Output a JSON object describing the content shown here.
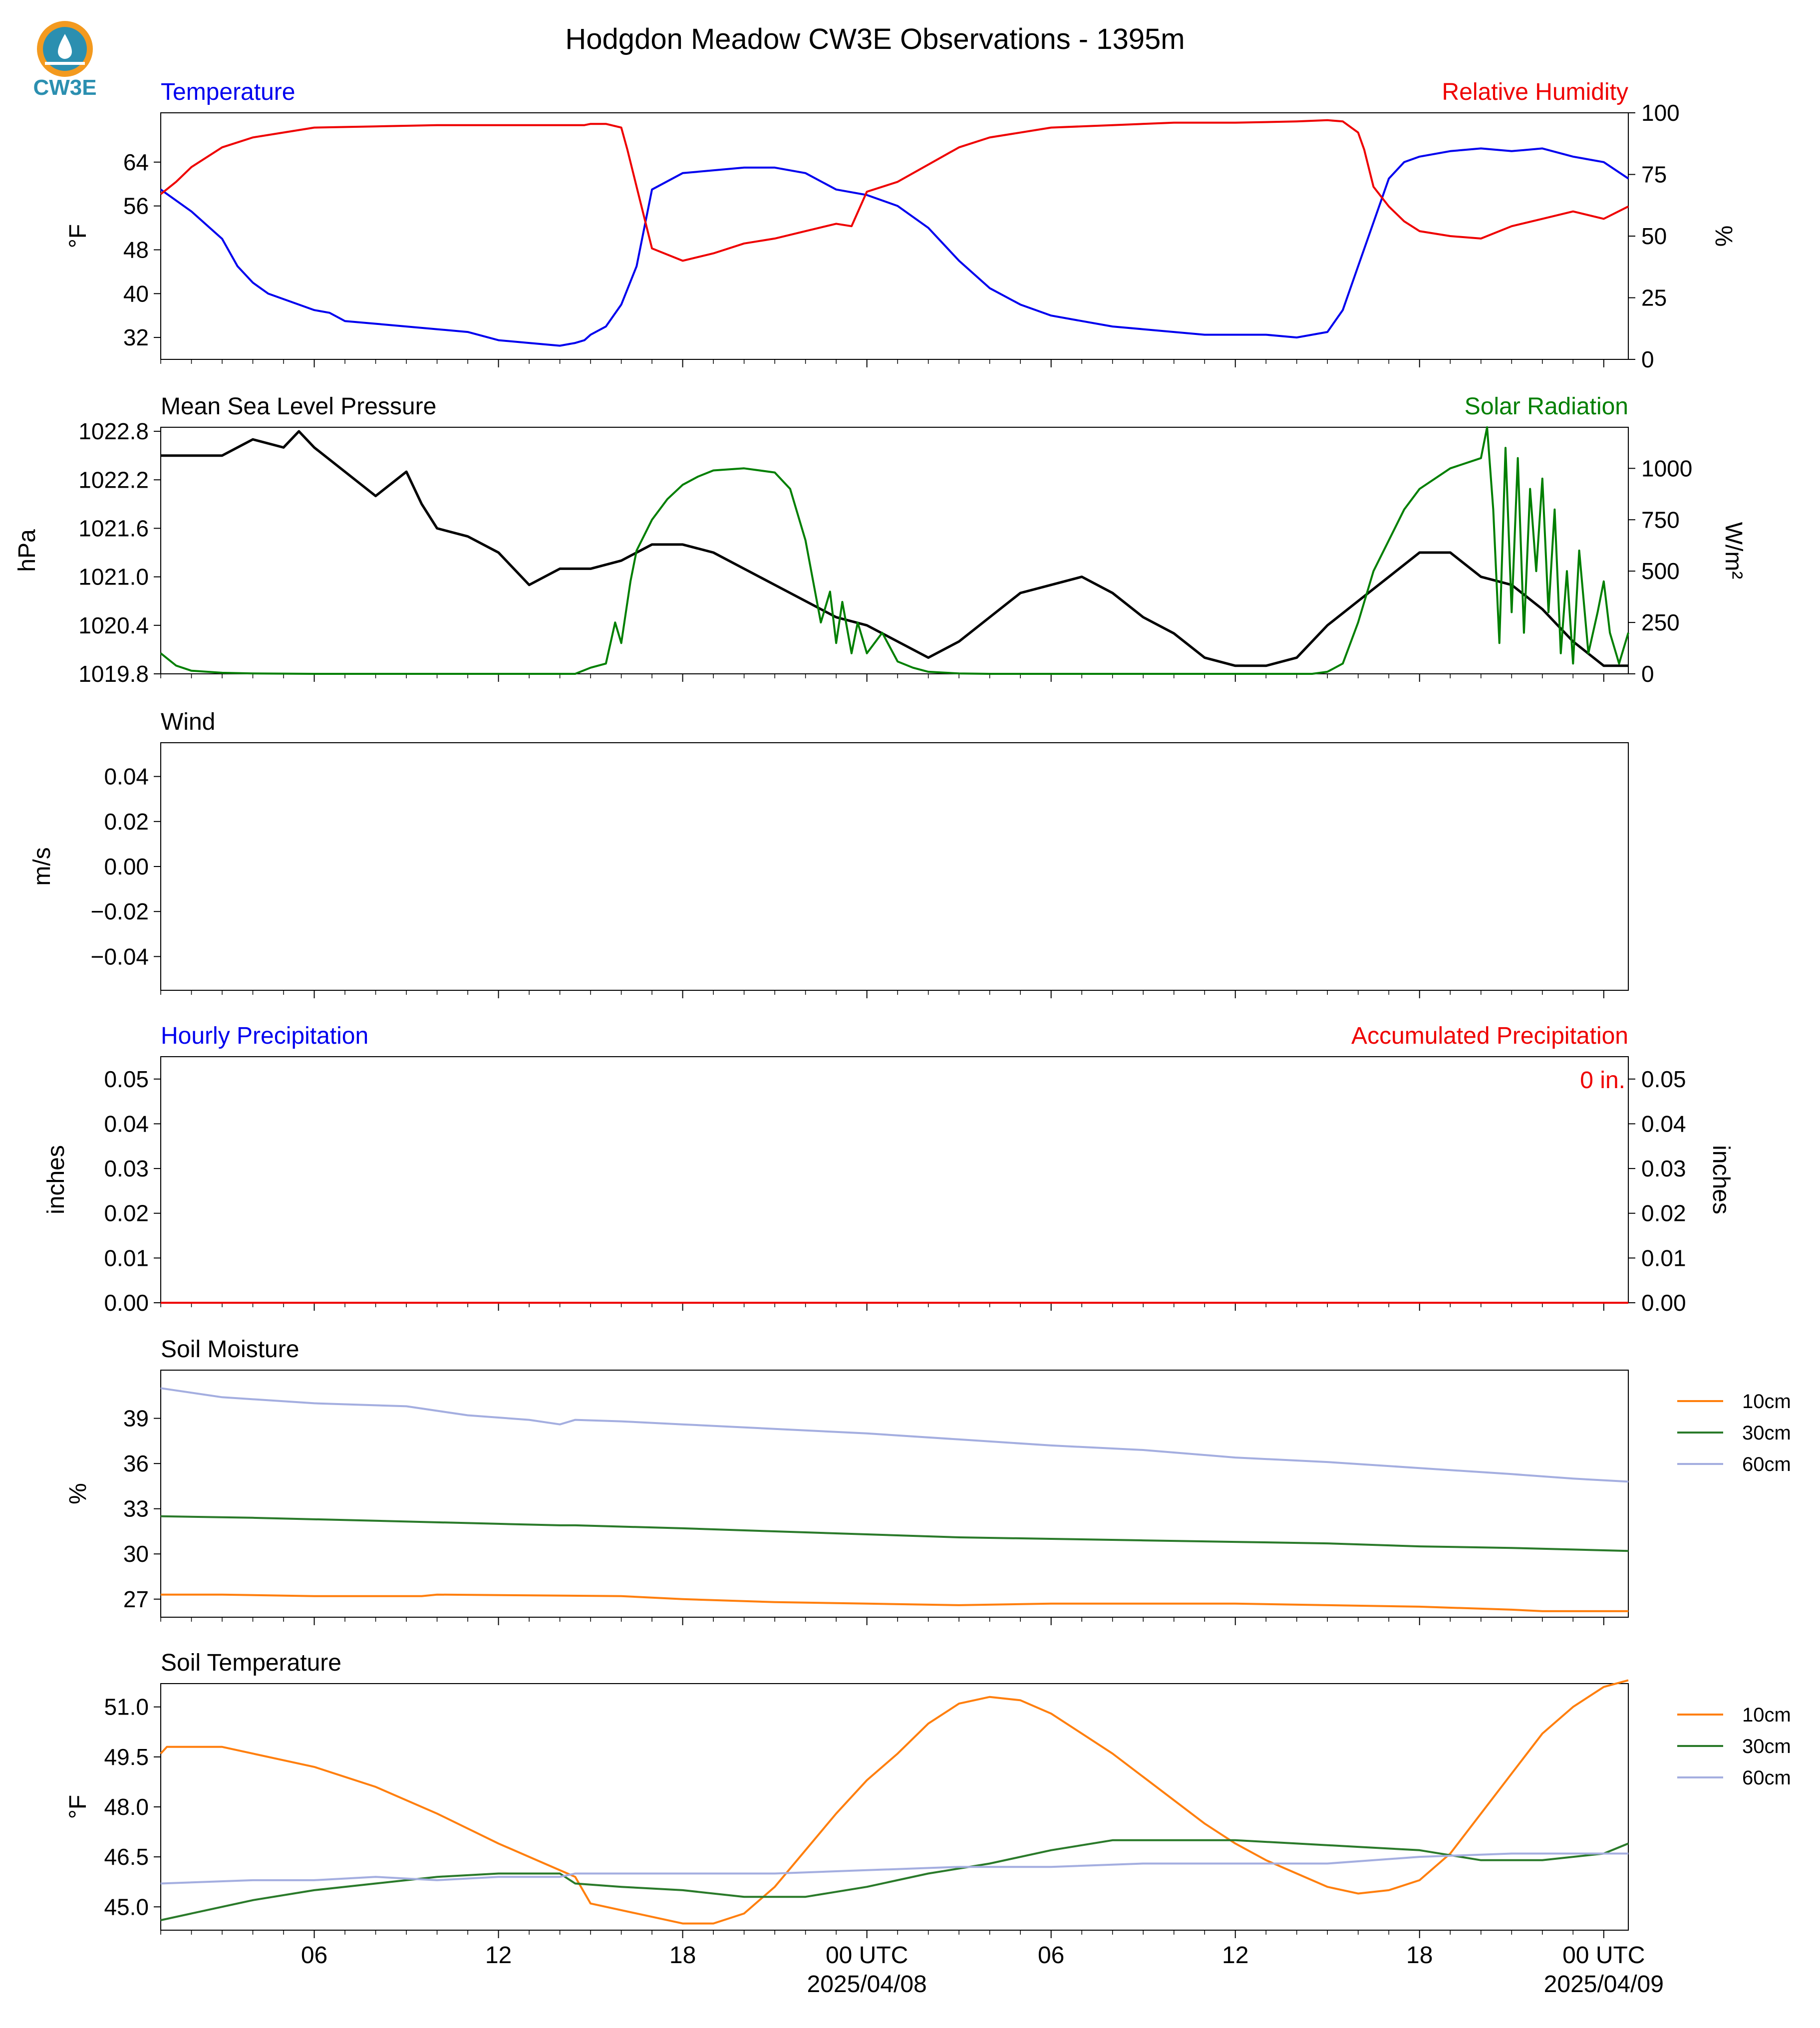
{
  "title": "Hodgdon Meadow CW3E Observations - 1395m",
  "logo_text": "CW3E",
  "colors": {
    "blue": "#0000ee",
    "red": "#ee0000",
    "green": "#007f00",
    "black": "#000000",
    "orange": "#ff7f0e",
    "dkgreen": "#2a7a2a",
    "lav": "#a4aee0",
    "logo": "#2b8fb0",
    "logo_orange": "#f39a1f"
  },
  "x_axis": {
    "start_hour": -23,
    "end_hour": 24.8,
    "tick_labels": [
      {
        "hour": -18,
        "lines": [
          "06"
        ]
      },
      {
        "hour": -12,
        "lines": [
          "12"
        ]
      },
      {
        "hour": -6,
        "lines": [
          "18"
        ]
      },
      {
        "hour": 0,
        "lines": [
          "00 UTC",
          "2025/04/08"
        ]
      },
      {
        "hour": 6,
        "lines": [
          "06"
        ]
      },
      {
        "hour": 12,
        "lines": [
          "12"
        ]
      },
      {
        "hour": 18,
        "lines": [
          "18"
        ]
      },
      {
        "hour": 24,
        "lines": [
          "00 UTC",
          "2025/04/09"
        ]
      }
    ]
  },
  "chart_data": [
    {
      "type": "line",
      "left_title": "Temperature",
      "right_title": "Relative Humidity",
      "ylabel": "°F",
      "ylim": [
        28,
        73
      ],
      "yticks": [
        32,
        40,
        48,
        56,
        64
      ],
      "y2label": "%",
      "y2lim": [
        0,
        100
      ],
      "y2ticks": [
        0,
        25,
        50,
        75,
        100
      ],
      "series": [
        {
          "name": "Temperature",
          "axis": "left",
          "color_key": "blue",
          "x": [
            -23,
            -22,
            -21,
            -20.5,
            -20,
            -19.5,
            -19,
            -18.5,
            -18,
            -17.5,
            -17,
            -16,
            -15,
            -14,
            -13,
            -12,
            -11,
            -10,
            -9.5,
            -9.2,
            -9,
            -8.5,
            -8,
            -7.5,
            -7,
            -6,
            -5,
            -4,
            -3,
            -2,
            -1,
            0,
            1,
            2,
            3,
            4,
            5,
            6,
            7,
            8,
            9,
            10,
            11,
            12,
            13,
            14,
            15,
            15.5,
            16,
            16.5,
            17,
            17.5,
            18,
            19,
            20,
            21,
            22,
            23,
            24,
            24.8
          ],
          "y": [
            59,
            55,
            50,
            45,
            42,
            40,
            39,
            38,
            37,
            36.5,
            35,
            34.5,
            34,
            33.5,
            33,
            31.5,
            31,
            30.5,
            31,
            31.5,
            32.5,
            34,
            38,
            45,
            59,
            62,
            62.5,
            63,
            63,
            62,
            59,
            58,
            56,
            52,
            46,
            41,
            38,
            36,
            35,
            34,
            33.5,
            33,
            32.5,
            32.5,
            32.5,
            32,
            33,
            37,
            45,
            53,
            61,
            64,
            65,
            66,
            66.5,
            66,
            66.5,
            65,
            64,
            61
          ]
        },
        {
          "name": "Relative Humidity",
          "axis": "right",
          "color_key": "red",
          "x": [
            -23,
            -22.5,
            -22,
            -21,
            -20,
            -19,
            -18,
            -16,
            -14,
            -12,
            -10,
            -9.2,
            -9,
            -8.5,
            -8,
            -7.8,
            -7.5,
            -7,
            -6,
            -5,
            -4,
            -3,
            -2,
            -1,
            -0.5,
            0,
            1,
            2,
            3,
            4,
            6,
            8,
            10,
            12,
            14,
            15,
            15.5,
            16,
            16.2,
            16.5,
            17,
            17.5,
            18,
            19,
            20,
            21,
            22,
            23,
            24,
            24.8
          ],
          "y": [
            67,
            72,
            78,
            86,
            90,
            92,
            94,
            94.5,
            95,
            95,
            95,
            95,
            95.5,
            95.5,
            94,
            85,
            70,
            45,
            40,
            43,
            47,
            49,
            52,
            55,
            54,
            68,
            72,
            79,
            86,
            90,
            94,
            95,
            96,
            96,
            96.5,
            97,
            96.5,
            92,
            85,
            70,
            62,
            56,
            52,
            50,
            49,
            54,
            57,
            60,
            57,
            62
          ]
        }
      ]
    },
    {
      "type": "line",
      "left_title": "Mean Sea Level Pressure",
      "right_title": "Solar Radiation",
      "ylabel": "hPa",
      "ylim": [
        1019.8,
        1022.85
      ],
      "yticks": [
        1019.8,
        1020.4,
        1021.0,
        1021.6,
        1022.2,
        1022.8
      ],
      "ytick_labels": [
        "1019.8",
        "1020.4",
        "1021.0",
        "1021.6",
        "1022.2",
        "1022.8"
      ],
      "y2label": "W/m²",
      "y2lim": [
        0,
        1200
      ],
      "y2ticks": [
        0,
        250,
        500,
        750,
        1000
      ],
      "series": [
        {
          "name": "Mean Sea Level Pressure",
          "axis": "left",
          "color_key": "black",
          "x": [
            -23,
            -22,
            -21,
            -20,
            -19,
            -18.5,
            -18,
            -17,
            -16,
            -15,
            -14.5,
            -14,
            -13,
            -12,
            -11,
            -10,
            -9.5,
            -9,
            -8,
            -7,
            -6,
            -5,
            -4,
            -3,
            -2,
            -1,
            0,
            1,
            2,
            3,
            4,
            5,
            6,
            7,
            8,
            9,
            10,
            11,
            12,
            13,
            14,
            15,
            16,
            17,
            18,
            19,
            20,
            21,
            22,
            23,
            24,
            24.8
          ],
          "y": [
            1022.5,
            1022.5,
            1022.5,
            1022.7,
            1022.6,
            1022.8,
            1022.6,
            1022.3,
            1022.0,
            1022.3,
            1021.9,
            1021.6,
            1021.5,
            1021.3,
            1020.9,
            1021.1,
            1021.1,
            1021.1,
            1021.2,
            1021.4,
            1021.4,
            1021.3,
            1021.1,
            1020.9,
            1020.7,
            1020.5,
            1020.4,
            1020.2,
            1020.0,
            1020.2,
            1020.5,
            1020.8,
            1020.9,
            1021.0,
            1020.8,
            1020.5,
            1020.3,
            1020.0,
            1019.9,
            1019.9,
            1020.0,
            1020.4,
            1020.7,
            1021.0,
            1021.3,
            1021.3,
            1021.0,
            1020.9,
            1020.6,
            1020.2,
            1019.9,
            1019.9
          ]
        },
        {
          "name": "Solar Radiation",
          "axis": "right",
          "color_key": "green",
          "x": [
            -23,
            -22.5,
            -22,
            -21,
            -20,
            -18,
            -16,
            -14,
            -12,
            -10,
            -9.5,
            -9,
            -8.5,
            -8.2,
            -8,
            -7.7,
            -7.5,
            -7,
            -6.5,
            -6,
            -5.5,
            -5,
            -4,
            -3,
            -2.5,
            -2,
            -1.5,
            -1.2,
            -1,
            -0.8,
            -0.5,
            -0.3,
            0,
            0.5,
            1,
            1.5,
            2,
            3,
            4,
            6,
            8,
            10,
            12,
            14,
            14.5,
            15,
            15.5,
            16,
            16.5,
            17,
            17.5,
            18,
            19,
            20,
            20.2,
            20.4,
            20.6,
            20.8,
            21,
            21.2,
            21.4,
            21.6,
            21.8,
            22,
            22.2,
            22.4,
            22.6,
            22.8,
            23,
            23.2,
            23.5,
            23.8,
            24,
            24.2,
            24.5,
            24.8
          ],
          "y": [
            100,
            40,
            15,
            5,
            2,
            0,
            0,
            0,
            0,
            0,
            0,
            30,
            50,
            250,
            150,
            450,
            600,
            750,
            850,
            920,
            960,
            990,
            1000,
            980,
            900,
            650,
            250,
            400,
            150,
            350,
            100,
            250,
            100,
            200,
            60,
            30,
            10,
            2,
            0,
            0,
            0,
            0,
            0,
            0,
            0,
            10,
            50,
            250,
            500,
            650,
            800,
            900,
            1000,
            1050,
            1200,
            800,
            150,
            1100,
            300,
            1050,
            200,
            900,
            500,
            950,
            300,
            800,
            100,
            500,
            50,
            600,
            100,
            300,
            450,
            200,
            50,
            200
          ]
        }
      ]
    },
    {
      "type": "line",
      "left_title": "Wind",
      "ylabel": "m/s",
      "ylim": [
        -0.055,
        0.055
      ],
      "yticks": [
        -0.04,
        -0.02,
        0.0,
        0.02,
        0.04
      ],
      "ytick_labels": [
        "−0.04",
        "−0.02",
        "0.00",
        "0.02",
        "0.04"
      ],
      "series": []
    },
    {
      "type": "line",
      "left_title": "Hourly Precipitation",
      "right_title": "Accumulated Precipitation",
      "annotation": "0 in.",
      "ylabel": "inches",
      "ylim": [
        0,
        0.055
      ],
      "yticks": [
        0.0,
        0.01,
        0.02,
        0.03,
        0.04,
        0.05
      ],
      "ytick_labels": [
        "0.00",
        "0.01",
        "0.02",
        "0.03",
        "0.04",
        "0.05"
      ],
      "y2label": "inches",
      "y2lim": [
        0,
        0.055
      ],
      "y2ticks": [
        0.0,
        0.01,
        0.02,
        0.03,
        0.04,
        0.05
      ],
      "y2tick_labels": [
        "0.00",
        "0.01",
        "0.02",
        "0.03",
        "0.04",
        "0.05"
      ],
      "series": [
        {
          "name": "Hourly Precipitation",
          "axis": "left",
          "color_key": "blue",
          "x": [
            -23,
            24.8
          ],
          "y": [
            0,
            0
          ]
        },
        {
          "name": "Accumulated Precipitation",
          "axis": "left",
          "color_key": "red",
          "x": [
            -23,
            24.8
          ],
          "y": [
            0,
            0
          ]
        }
      ]
    },
    {
      "type": "line",
      "left_title": "Soil Moisture",
      "ylabel": "%",
      "ylim": [
        25.8,
        42.2
      ],
      "yticks": [
        27,
        30,
        33,
        36,
        39
      ],
      "legend": [
        "10cm",
        "30cm",
        "60cm"
      ],
      "series": [
        {
          "name": "10cm",
          "color_key": "orange",
          "x": [
            -23,
            -21,
            -18,
            -14.5,
            -14,
            -8,
            -6,
            -3,
            0,
            3,
            6,
            9,
            12,
            15,
            18,
            21,
            22,
            24.8
          ],
          "y": [
            27.3,
            27.3,
            27.2,
            27.2,
            27.3,
            27.2,
            27.0,
            26.8,
            26.7,
            26.6,
            26.7,
            26.7,
            26.7,
            26.6,
            26.5,
            26.3,
            26.2,
            26.2
          ]
        },
        {
          "name": "30cm",
          "color_key": "dkgreen",
          "x": [
            -23,
            -20,
            -16,
            -12,
            -10,
            -9.5,
            -6,
            -3,
            0,
            3,
            6,
            9,
            12,
            15,
            18,
            21,
            24.8
          ],
          "y": [
            32.5,
            32.4,
            32.2,
            32.0,
            31.9,
            31.9,
            31.7,
            31.5,
            31.3,
            31.1,
            31.0,
            30.9,
            30.8,
            30.7,
            30.5,
            30.4,
            30.2
          ]
        },
        {
          "name": "60cm",
          "color_key": "lav",
          "x": [
            -23,
            -21,
            -18,
            -15,
            -13,
            -11,
            -10,
            -9.5,
            -8,
            -6,
            -3,
            0,
            3,
            6,
            9,
            12,
            15,
            18,
            21,
            23,
            24.8
          ],
          "y": [
            41.0,
            40.4,
            40.0,
            39.8,
            39.2,
            38.9,
            38.6,
            38.9,
            38.8,
            38.6,
            38.3,
            38.0,
            37.6,
            37.2,
            36.9,
            36.4,
            36.1,
            35.7,
            35.3,
            35.0,
            34.8
          ]
        }
      ]
    },
    {
      "type": "line",
      "left_title": "Soil Temperature",
      "ylabel": "°F",
      "ylim": [
        44.3,
        51.7
      ],
      "yticks": [
        45.0,
        46.5,
        48.0,
        49.5,
        51.0
      ],
      "ytick_labels": [
        "45.0",
        "46.5",
        "48.0",
        "49.5",
        "51.0"
      ],
      "legend": [
        "10cm",
        "30cm",
        "60cm"
      ],
      "series": [
        {
          "name": "10cm",
          "color_key": "orange",
          "x": [
            -23,
            -22.8,
            -21,
            -20,
            -18,
            -16,
            -14,
            -12,
            -10.5,
            -9.5,
            -9,
            -7.5,
            -6,
            -5,
            -4,
            -3,
            -2,
            -1,
            0,
            1,
            2,
            3,
            4,
            5,
            6,
            7,
            8,
            9,
            10,
            11,
            12,
            13,
            14,
            15,
            16,
            17,
            18,
            19,
            20,
            21,
            22,
            23,
            24,
            24.8
          ],
          "y": [
            49.6,
            49.8,
            49.8,
            49.6,
            49.2,
            48.6,
            47.8,
            46.9,
            46.3,
            45.9,
            45.1,
            44.8,
            44.5,
            44.5,
            44.8,
            45.6,
            46.7,
            47.8,
            48.8,
            49.6,
            50.5,
            51.1,
            51.3,
            51.2,
            50.8,
            50.2,
            49.6,
            48.9,
            48.2,
            47.5,
            46.9,
            46.4,
            46.0,
            45.6,
            45.4,
            45.5,
            45.8,
            46.6,
            47.8,
            49.0,
            50.2,
            51.0,
            51.6,
            51.8
          ]
        },
        {
          "name": "30cm",
          "color_key": "dkgreen",
          "x": [
            -23,
            -22,
            -20,
            -18,
            -16,
            -14,
            -12,
            -10,
            -9.5,
            -8,
            -6,
            -4,
            -2,
            0,
            2,
            4,
            6,
            8,
            10,
            12,
            14,
            16,
            18,
            20,
            22,
            24,
            24.8
          ],
          "y": [
            44.6,
            44.8,
            45.2,
            45.5,
            45.7,
            45.9,
            46.0,
            46.0,
            45.7,
            45.6,
            45.5,
            45.3,
            45.3,
            45.6,
            46.0,
            46.3,
            46.7,
            47.0,
            47.0,
            47.0,
            46.9,
            46.8,
            46.7,
            46.4,
            46.4,
            46.6,
            46.9
          ]
        },
        {
          "name": "60cm",
          "color_key": "lav",
          "x": [
            -23,
            -20,
            -18,
            -16,
            -14,
            -12,
            -10,
            -9.5,
            -6,
            -3,
            0,
            3,
            6,
            9,
            12,
            15,
            18,
            21,
            24,
            24.8
          ],
          "y": [
            45.7,
            45.8,
            45.8,
            45.9,
            45.8,
            45.9,
            45.9,
            46.0,
            46.0,
            46.0,
            46.1,
            46.2,
            46.2,
            46.3,
            46.3,
            46.3,
            46.5,
            46.6,
            46.6,
            46.6
          ]
        }
      ]
    }
  ]
}
